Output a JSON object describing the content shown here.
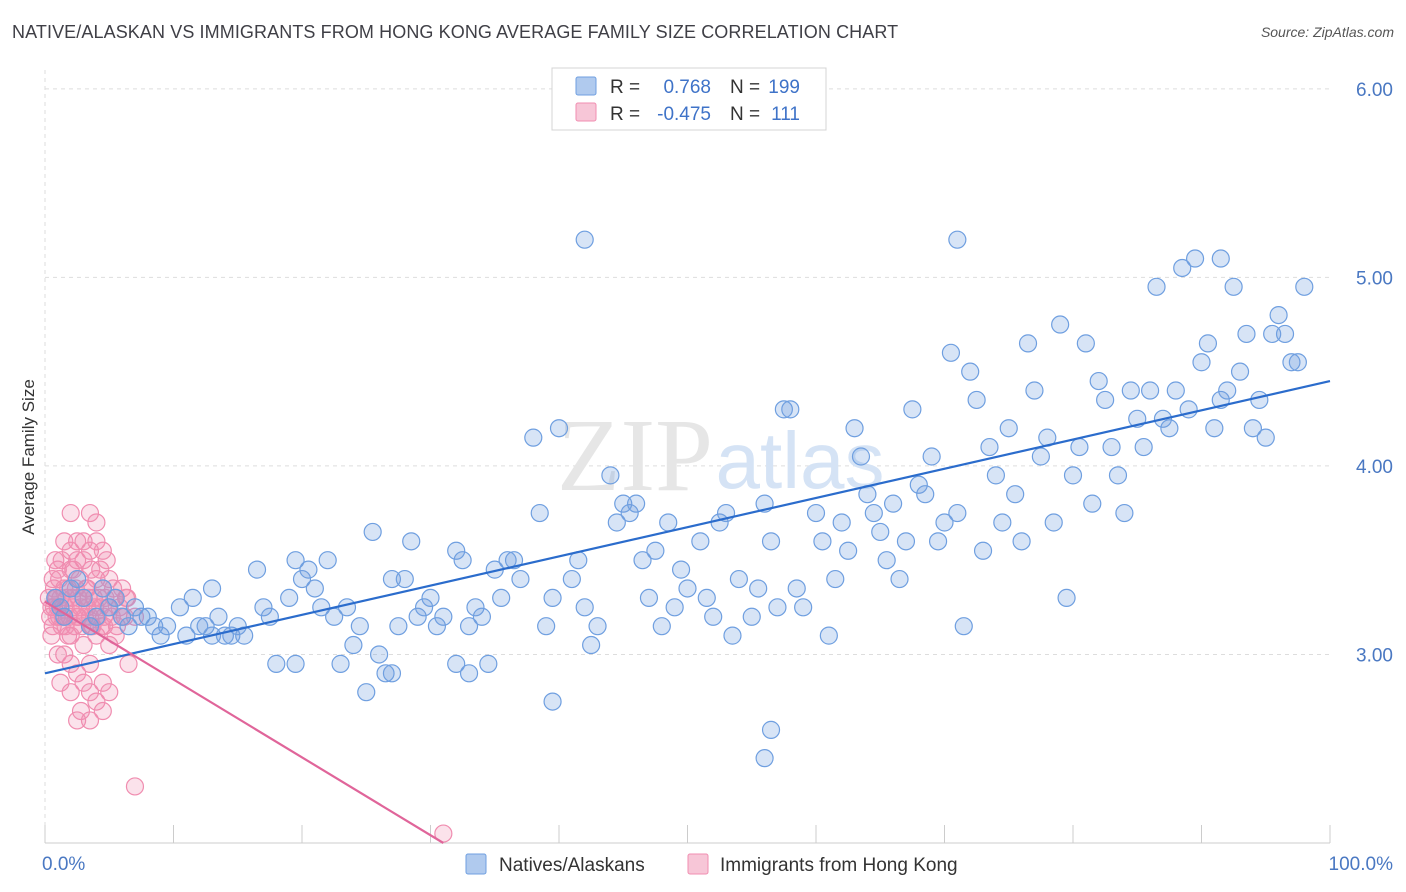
{
  "header": {
    "title": "NATIVE/ALASKAN VS IMMIGRANTS FROM HONG KONG AVERAGE FAMILY SIZE CORRELATION CHART",
    "source": "Source: ZipAtlas.com"
  },
  "watermark": {
    "zip": "ZIP",
    "atlas": "atlas"
  },
  "colors": {
    "blue": "#6f9fe0",
    "blue_fill": "rgba(111,159,224,0.28)",
    "blue_line": "#2b6ccc",
    "pink": "#f08db0",
    "pink_fill": "rgba(240,141,176,0.25)",
    "pink_line": "#e0659a",
    "tick_text": "#4a78c2",
    "grid": "#dddddd"
  },
  "legend": {
    "rows": [
      {
        "r_label": "R =",
        "r_value": "0.768",
        "n_label": "N =",
        "n_value": "199"
      },
      {
        "r_label": "R =",
        "r_value": "-0.475",
        "n_label": "N =",
        "n_value": "111"
      }
    ]
  },
  "chart_data": {
    "type": "scatter",
    "title": "NATIVE/ALASKAN VS IMMIGRANTS FROM HONG KONG AVERAGE FAMILY SIZE CORRELATION CHART",
    "xlabel": "",
    "ylabel": "Average Family Size",
    "xlim": [
      0,
      100
    ],
    "ylim": [
      2.0,
      6.1
    ],
    "x_tick_labels": [
      "0.0%",
      "100.0%"
    ],
    "y_ticks": [
      3.0,
      4.0,
      5.0,
      6.0
    ],
    "y_tick_labels": [
      "3.00",
      "4.00",
      "5.00",
      "6.00"
    ],
    "grid": true,
    "legend_position": "top-center",
    "series": [
      {
        "name": "Natives/Alaskans",
        "r": 0.768,
        "n": 199,
        "trend": {
          "x": [
            0,
            100
          ],
          "y": [
            2.9,
            4.45
          ]
        },
        "points": [
          [
            0.8,
            3.3
          ],
          [
            1.2,
            3.25
          ],
          [
            1.5,
            3.2
          ],
          [
            2,
            3.35
          ],
          [
            2.5,
            3.4
          ],
          [
            3,
            3.3
          ],
          [
            3.5,
            3.15
          ],
          [
            4,
            3.2
          ],
          [
            4.5,
            3.35
          ],
          [
            5,
            3.25
          ],
          [
            5.5,
            3.3
          ],
          [
            6,
            3.2
          ],
          [
            6.5,
            3.15
          ],
          [
            7,
            3.25
          ],
          [
            7.5,
            3.2
          ],
          [
            8,
            3.2
          ],
          [
            8.5,
            3.15
          ],
          [
            9,
            3.1
          ],
          [
            9.5,
            3.15
          ],
          [
            10.5,
            3.25
          ],
          [
            11,
            3.1
          ],
          [
            11.5,
            3.3
          ],
          [
            12,
            3.15
          ],
          [
            12.5,
            3.15
          ],
          [
            13,
            3.1
          ],
          [
            13.5,
            3.2
          ],
          [
            14,
            3.1
          ],
          [
            14.5,
            3.1
          ],
          [
            15,
            3.15
          ],
          [
            15.5,
            3.1
          ],
          [
            16.5,
            3.45
          ],
          [
            17,
            3.25
          ],
          [
            17.5,
            3.2
          ],
          [
            18,
            2.95
          ],
          [
            19,
            3.3
          ],
          [
            19.5,
            3.5
          ],
          [
            20,
            3.4
          ],
          [
            20.5,
            3.45
          ],
          [
            21,
            3.35
          ],
          [
            21.5,
            3.25
          ],
          [
            22,
            3.5
          ],
          [
            22.5,
            3.2
          ],
          [
            23,
            2.95
          ],
          [
            23.5,
            3.25
          ],
          [
            24,
            3.05
          ],
          [
            24.5,
            3.15
          ],
          [
            25,
            2.8
          ],
          [
            25.5,
            3.65
          ],
          [
            26,
            3.0
          ],
          [
            26.5,
            2.9
          ],
          [
            27,
            3.4
          ],
          [
            27.5,
            3.15
          ],
          [
            28,
            3.4
          ],
          [
            28.5,
            3.6
          ],
          [
            29,
            3.2
          ],
          [
            29.5,
            3.25
          ],
          [
            30,
            3.3
          ],
          [
            30.5,
            3.15
          ],
          [
            31,
            3.2
          ],
          [
            32,
            3.55
          ],
          [
            32.5,
            3.5
          ],
          [
            33,
            3.15
          ],
          [
            33.5,
            3.25
          ],
          [
            34,
            3.2
          ],
          [
            34.5,
            2.95
          ],
          [
            35,
            3.45
          ],
          [
            35.5,
            3.3
          ],
          [
            36,
            3.5
          ],
          [
            36.5,
            3.5
          ],
          [
            37,
            3.4
          ],
          [
            38,
            4.15
          ],
          [
            38.5,
            3.75
          ],
          [
            39,
            3.15
          ],
          [
            39.5,
            3.3
          ],
          [
            40,
            4.2
          ],
          [
            41,
            3.4
          ],
          [
            41.5,
            3.5
          ],
          [
            42,
            3.25
          ],
          [
            42.5,
            3.05
          ],
          [
            43,
            3.15
          ],
          [
            44,
            3.95
          ],
          [
            44.5,
            3.7
          ],
          [
            45,
            3.8
          ],
          [
            45.5,
            3.75
          ],
          [
            46,
            3.8
          ],
          [
            46.5,
            3.5
          ],
          [
            47,
            3.3
          ],
          [
            47.5,
            3.55
          ],
          [
            48,
            3.15
          ],
          [
            48.5,
            3.7
          ],
          [
            49,
            3.25
          ],
          [
            49.5,
            3.45
          ],
          [
            50,
            3.35
          ],
          [
            51,
            3.6
          ],
          [
            51.5,
            3.3
          ],
          [
            52,
            3.2
          ],
          [
            52.5,
            3.7
          ],
          [
            53,
            3.75
          ],
          [
            53.5,
            3.1
          ],
          [
            54,
            3.4
          ],
          [
            55,
            3.2
          ],
          [
            55.5,
            3.35
          ],
          [
            56,
            3.8
          ],
          [
            56.5,
            3.6
          ],
          [
            57,
            3.25
          ],
          [
            57.5,
            4.3
          ],
          [
            58,
            4.3
          ],
          [
            58.5,
            3.35
          ],
          [
            59,
            3.25
          ],
          [
            60,
            3.75
          ],
          [
            60.5,
            3.6
          ],
          [
            61,
            3.1
          ],
          [
            61.5,
            3.4
          ],
          [
            62,
            3.7
          ],
          [
            62.5,
            3.55
          ],
          [
            63,
            4.2
          ],
          [
            63.5,
            4.05
          ],
          [
            64,
            3.85
          ],
          [
            64.5,
            3.75
          ],
          [
            65,
            3.65
          ],
          [
            65.5,
            3.5
          ],
          [
            66,
            3.8
          ],
          [
            66.5,
            3.4
          ],
          [
            67,
            3.6
          ],
          [
            67.5,
            4.3
          ],
          [
            68,
            3.9
          ],
          [
            68.5,
            3.85
          ],
          [
            69,
            4.05
          ],
          [
            69.5,
            3.6
          ],
          [
            70,
            3.7
          ],
          [
            70.5,
            4.6
          ],
          [
            71,
            3.75
          ],
          [
            71.5,
            3.15
          ],
          [
            72,
            4.5
          ],
          [
            72.5,
            4.35
          ],
          [
            73,
            3.55
          ],
          [
            73.5,
            4.1
          ],
          [
            74,
            3.95
          ],
          [
            74.5,
            3.7
          ],
          [
            75,
            4.2
          ],
          [
            75.5,
            3.85
          ],
          [
            76,
            3.6
          ],
          [
            76.5,
            4.65
          ],
          [
            77,
            4.4
          ],
          [
            77.5,
            4.05
          ],
          [
            78,
            4.15
          ],
          [
            78.5,
            3.7
          ],
          [
            79,
            4.75
          ],
          [
            79.5,
            3.3
          ],
          [
            80,
            3.95
          ],
          [
            80.5,
            4.1
          ],
          [
            81,
            4.65
          ],
          [
            81.5,
            3.8
          ],
          [
            82,
            4.45
          ],
          [
            82.5,
            4.35
          ],
          [
            83,
            4.1
          ],
          [
            83.5,
            3.95
          ],
          [
            84,
            3.75
          ],
          [
            84.5,
            4.4
          ],
          [
            85,
            4.25
          ],
          [
            85.5,
            4.1
          ],
          [
            86,
            4.4
          ],
          [
            86.5,
            4.95
          ],
          [
            87,
            4.25
          ],
          [
            87.5,
            4.2
          ],
          [
            88,
            4.4
          ],
          [
            88.5,
            5.05
          ],
          [
            89,
            4.3
          ],
          [
            89.5,
            5.1
          ],
          [
            90,
            4.55
          ],
          [
            90.5,
            4.65
          ],
          [
            91,
            4.2
          ],
          [
            91.5,
            4.35
          ],
          [
            92,
            4.4
          ],
          [
            92.5,
            4.95
          ],
          [
            93,
            4.5
          ],
          [
            93.5,
            4.7
          ],
          [
            94,
            4.2
          ],
          [
            94.5,
            4.35
          ],
          [
            95,
            4.15
          ],
          [
            95.5,
            4.7
          ],
          [
            96,
            4.8
          ],
          [
            96.5,
            4.7
          ],
          [
            97,
            4.55
          ],
          [
            97.5,
            4.55
          ],
          [
            98,
            4.95
          ],
          [
            42,
            5.2
          ],
          [
            71,
            5.2
          ],
          [
            91.5,
            5.1
          ],
          [
            56.5,
            2.6
          ],
          [
            56,
            2.45
          ],
          [
            39.5,
            2.75
          ],
          [
            33,
            2.9
          ],
          [
            19.5,
            2.95
          ],
          [
            13,
            3.35
          ],
          [
            27,
            2.9
          ],
          [
            32,
            2.95
          ]
        ]
      },
      {
        "name": "Immigrants from Hong Kong",
        "r": -0.475,
        "n": 111,
        "trend": {
          "x": [
            0,
            31
          ],
          "y": [
            3.28,
            2.0
          ]
        },
        "points": [
          [
            0.3,
            3.3
          ],
          [
            0.4,
            3.2
          ],
          [
            0.5,
            3.25
          ],
          [
            0.6,
            3.15
          ],
          [
            0.7,
            3.35
          ],
          [
            0.8,
            3.3
          ],
          [
            0.9,
            3.2
          ],
          [
            1.0,
            3.25
          ],
          [
            1.1,
            3.4
          ],
          [
            1.2,
            3.3
          ],
          [
            1.3,
            3.15
          ],
          [
            1.4,
            3.2
          ],
          [
            1.5,
            3.35
          ],
          [
            1.6,
            3.25
          ],
          [
            1.7,
            3.3
          ],
          [
            1.8,
            3.1
          ],
          [
            1.9,
            3.2
          ],
          [
            2.0,
            3.45
          ],
          [
            2.1,
            3.3
          ],
          [
            2.2,
            3.25
          ],
          [
            2.3,
            3.15
          ],
          [
            2.4,
            3.35
          ],
          [
            2.5,
            3.2
          ],
          [
            2.6,
            3.3
          ],
          [
            2.7,
            3.4
          ],
          [
            2.8,
            3.25
          ],
          [
            2.9,
            3.15
          ],
          [
            3.0,
            3.3
          ],
          [
            3.1,
            3.2
          ],
          [
            3.2,
            3.35
          ],
          [
            3.3,
            3.25
          ],
          [
            3.4,
            3.3
          ],
          [
            3.5,
            3.2
          ],
          [
            3.6,
            3.45
          ],
          [
            3.7,
            3.15
          ],
          [
            3.8,
            3.3
          ],
          [
            3.9,
            3.25
          ],
          [
            4.0,
            3.4
          ],
          [
            4.1,
            3.2
          ],
          [
            4.2,
            3.3
          ],
          [
            4.3,
            3.25
          ],
          [
            4.4,
            3.15
          ],
          [
            4.5,
            3.35
          ],
          [
            4.6,
            3.2
          ],
          [
            4.7,
            3.3
          ],
          [
            4.8,
            3.5
          ],
          [
            4.9,
            3.25
          ],
          [
            5.0,
            3.4
          ],
          [
            5.2,
            3.2
          ],
          [
            5.4,
            3.3
          ],
          [
            5.6,
            3.15
          ],
          [
            5.8,
            3.25
          ],
          [
            6.0,
            3.35
          ],
          [
            6.2,
            3.2
          ],
          [
            6.4,
            3.3
          ],
          [
            1.5,
            3.6
          ],
          [
            2.0,
            3.55
          ],
          [
            2.5,
            3.5
          ],
          [
            3.0,
            3.6
          ],
          [
            3.5,
            3.55
          ],
          [
            4.0,
            3.6
          ],
          [
            4.5,
            3.55
          ],
          [
            3.5,
            3.75
          ],
          [
            4.0,
            3.7
          ],
          [
            2.0,
            3.75
          ],
          [
            2.5,
            3.6
          ],
          [
            3.0,
            3.5
          ],
          [
            1.0,
            3.45
          ],
          [
            1.5,
            3.0
          ],
          [
            2.0,
            2.95
          ],
          [
            2.5,
            2.9
          ],
          [
            1.2,
            2.85
          ],
          [
            2.0,
            2.8
          ],
          [
            3.0,
            2.85
          ],
          [
            3.5,
            2.8
          ],
          [
            4.0,
            2.75
          ],
          [
            4.5,
            2.85
          ],
          [
            5.0,
            2.8
          ],
          [
            3.5,
            2.65
          ],
          [
            2.8,
            2.7
          ],
          [
            2.5,
            2.65
          ],
          [
            6.5,
            2.95
          ],
          [
            4.5,
            2.7
          ],
          [
            3.5,
            2.95
          ],
          [
            5.5,
            3.1
          ],
          [
            5.0,
            3.05
          ],
          [
            4.0,
            3.1
          ],
          [
            3.0,
            3.05
          ],
          [
            2.0,
            3.1
          ],
          [
            1.0,
            3.0
          ],
          [
            0.5,
            3.1
          ],
          [
            1.8,
            3.35
          ],
          [
            2.2,
            3.45
          ],
          [
            3.3,
            3.35
          ],
          [
            4.3,
            3.45
          ],
          [
            5.3,
            3.35
          ],
          [
            6.3,
            3.3
          ],
          [
            0.6,
            3.4
          ],
          [
            0.8,
            3.5
          ],
          [
            1.3,
            3.5
          ],
          [
            7.0,
            3.2
          ],
          [
            1.6,
            3.15
          ],
          [
            2.6,
            3.2
          ],
          [
            3.6,
            3.15
          ],
          [
            4.6,
            3.15
          ],
          [
            1.1,
            3.2
          ],
          [
            0.9,
            3.3
          ],
          [
            0.7,
            3.25
          ],
          [
            7.0,
            2.3
          ],
          [
            31,
            2.05
          ],
          [
            6.0,
            3.2
          ]
        ]
      }
    ]
  },
  "bottom_legend": [
    {
      "label": "Natives/Alaskans"
    },
    {
      "label": "Immigrants from Hong Kong"
    }
  ]
}
